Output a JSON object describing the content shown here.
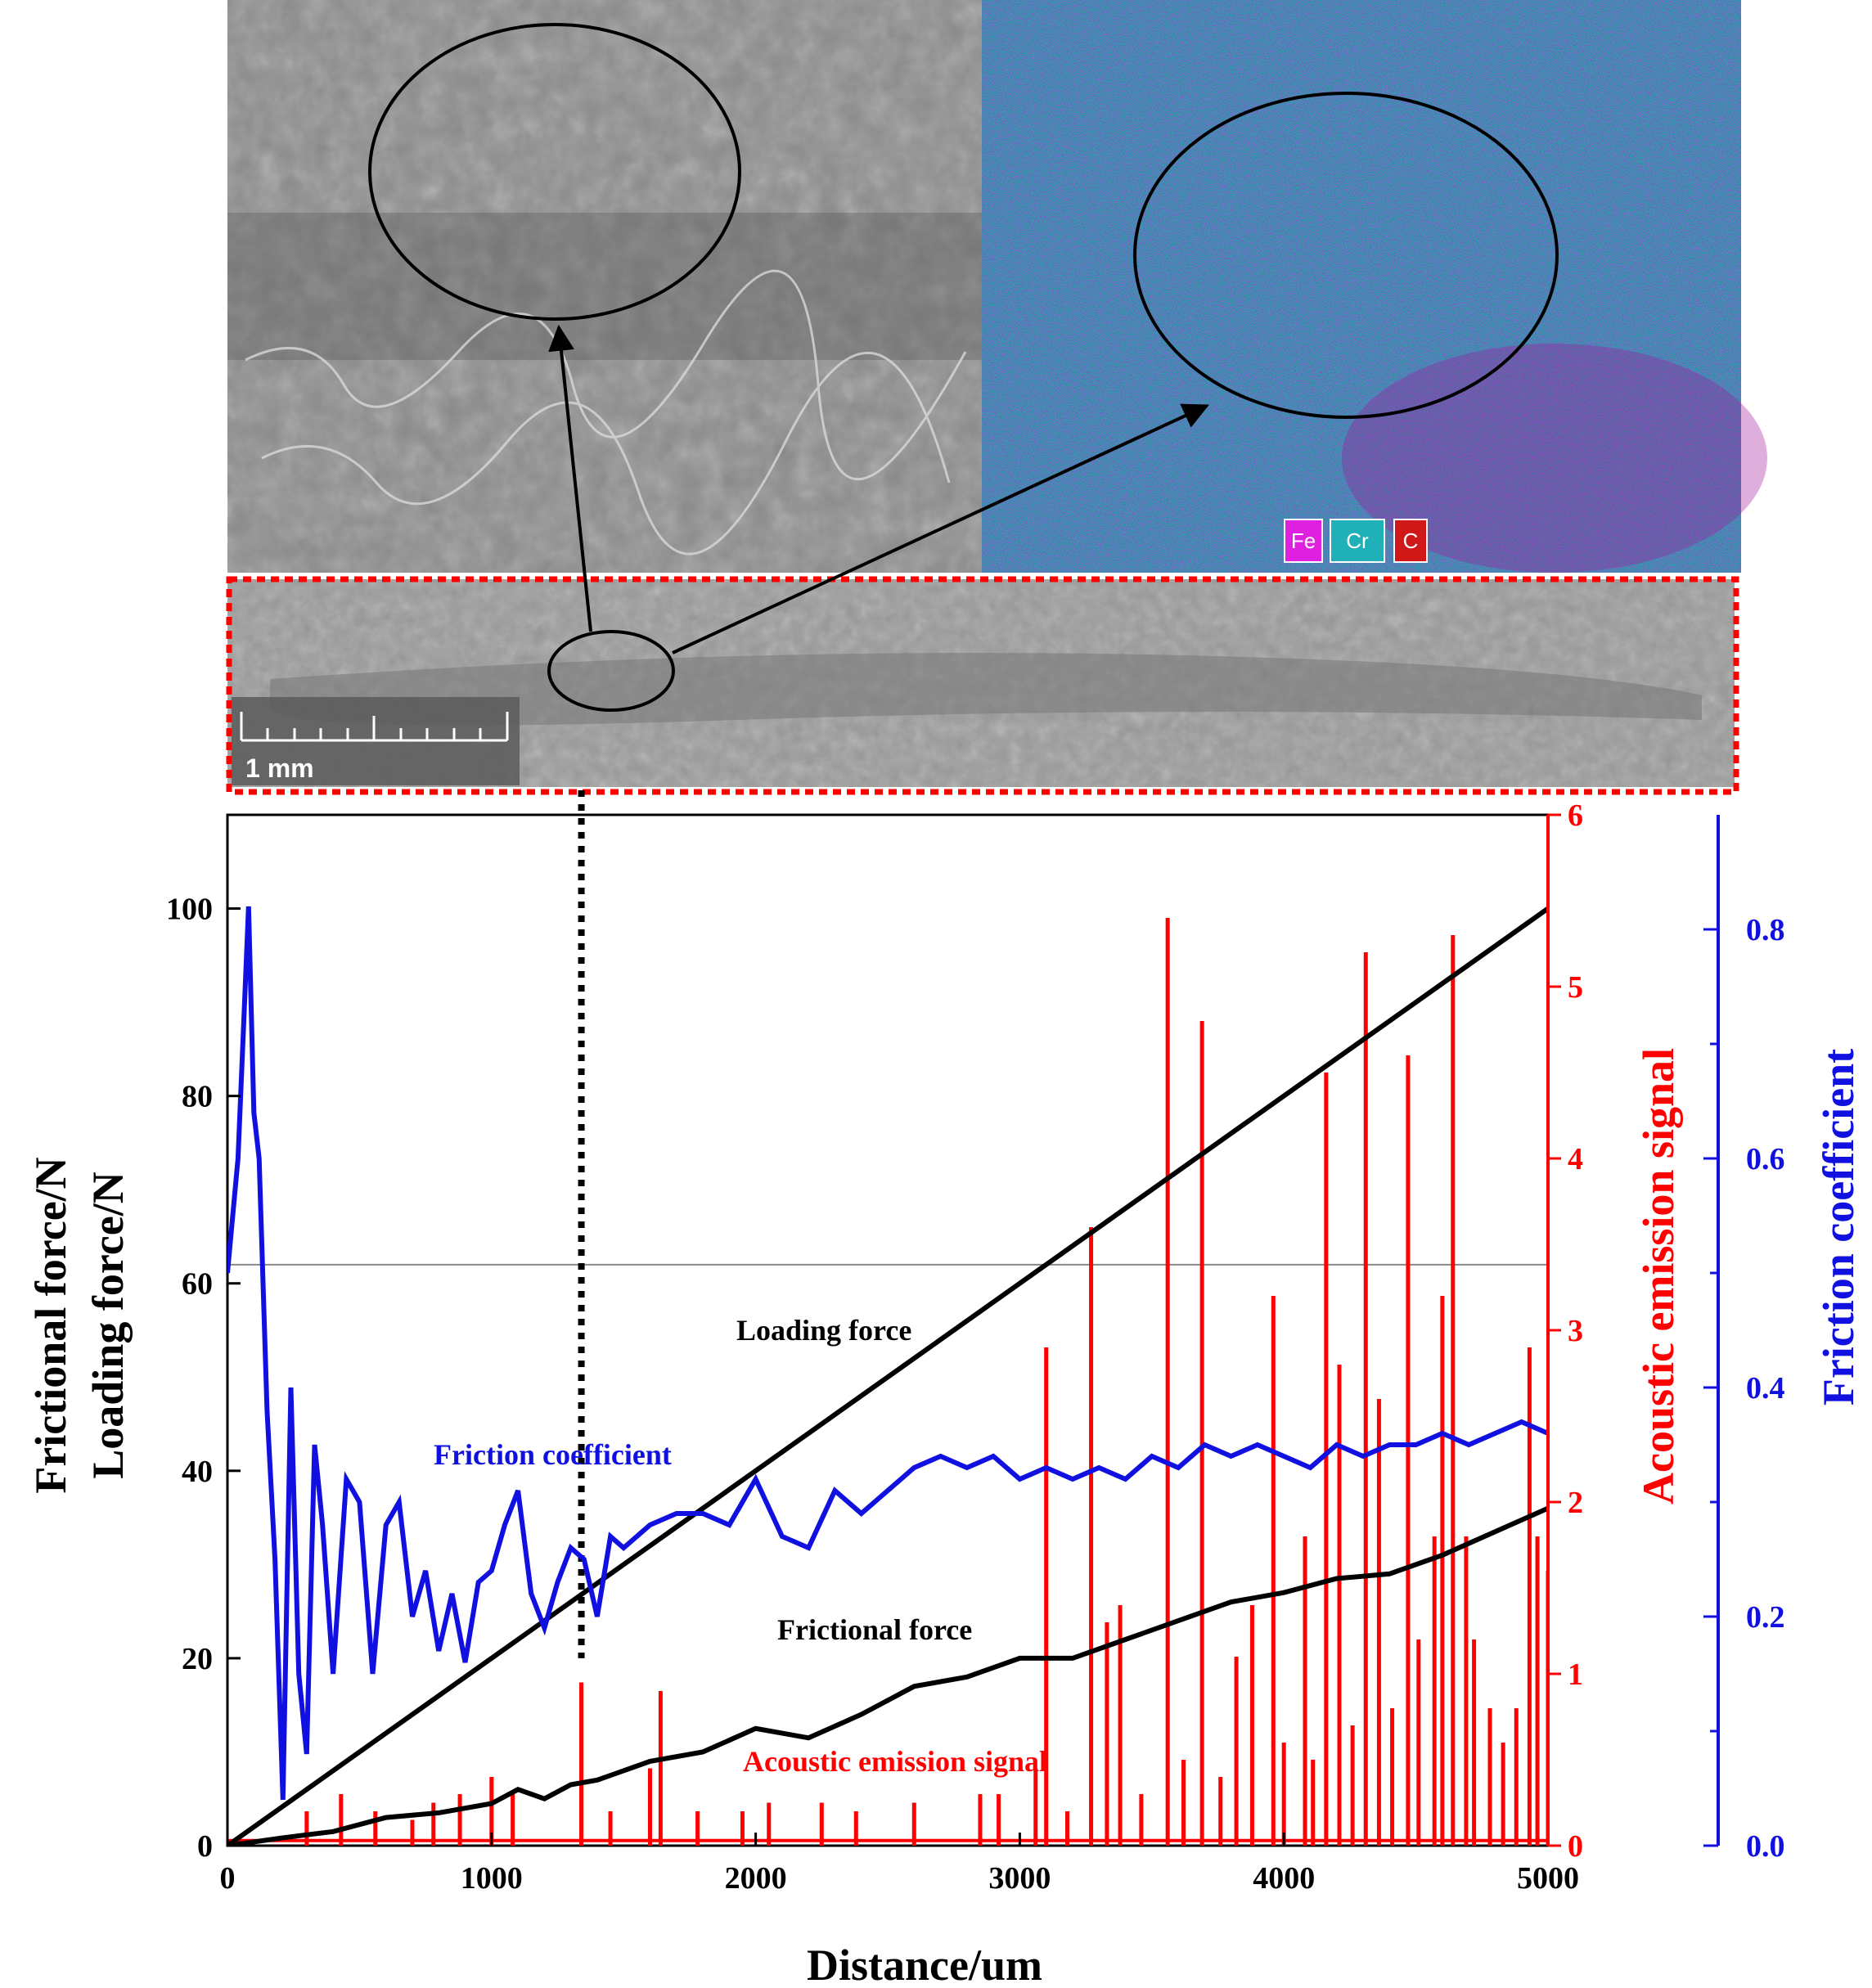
{
  "colors": {
    "load": "#000000",
    "friction_force": "#000000",
    "friction_coef": "#1010e0",
    "acoustic": "#ff0000",
    "sem_gray": "#8a8a8a",
    "eds_cyan": "#2aa6a8",
    "eds_magenta": "#a0169a",
    "highlight_box": "#ff0000"
  },
  "micrographs": {
    "legend": [
      {
        "label": "Fe",
        "color": "#e020e0"
      },
      {
        "label": "Cr",
        "color": "#20b0b8"
      },
      {
        "label": "C",
        "color": "#d01818"
      }
    ],
    "scale_bar_label": "1 mm"
  },
  "chart_data": {
    "type": "line",
    "xlabel": "Distance/um",
    "xlim": [
      0,
      5000
    ],
    "xticks": [
      0,
      1000,
      2000,
      3000,
      4000,
      5000
    ],
    "axes": {
      "left": {
        "label_line1": "Frictional force/N",
        "label_line2": "Loading force/N",
        "ylim": [
          0,
          110
        ],
        "ticks": [
          0,
          20,
          40,
          60,
          80,
          100
        ]
      },
      "right_red": {
        "label": "Acoustic emission signal",
        "ylim": [
          0,
          6
        ],
        "ticks": [
          0,
          1,
          2,
          3,
          4,
          5,
          6
        ]
      },
      "right_blue": {
        "label": "Friction coefficient",
        "ylim": [
          0,
          0.9
        ],
        "ticks": [
          "0.0",
          "0.2",
          "0.4",
          "0.6",
          "0.8"
        ]
      }
    },
    "reference_line_left_value": 62,
    "critical_distance": 1340,
    "annotations": {
      "loading_force": "Loading force",
      "friction_coefficient": "Friction coefficient",
      "frictional_force": "Frictional force",
      "acoustic_emission": "Acoustic emission signal"
    },
    "series": [
      {
        "name": "Loading force",
        "axis": "left",
        "x": [
          0,
          5000
        ],
        "y": [
          0,
          100
        ]
      },
      {
        "name": "Frictional force",
        "axis": "left",
        "x": [
          0,
          200,
          400,
          600,
          800,
          1000,
          1100,
          1200,
          1300,
          1400,
          1500,
          1600,
          1800,
          2000,
          2200,
          2400,
          2600,
          2800,
          3000,
          3200,
          3400,
          3600,
          3800,
          4000,
          4200,
          4400,
          4600,
          4800,
          5000
        ],
        "y": [
          0,
          0.8,
          1.5,
          3,
          3.5,
          4.5,
          6,
          5,
          6.5,
          7,
          8,
          9,
          10,
          12.5,
          11.5,
          14,
          17,
          18,
          20,
          20,
          22,
          24,
          26,
          27,
          28.5,
          29,
          31,
          33.5,
          36
        ]
      },
      {
        "name": "Friction coefficient",
        "axis": "right_blue",
        "x": [
          0,
          40,
          60,
          80,
          100,
          120,
          150,
          180,
          210,
          240,
          270,
          300,
          330,
          360,
          400,
          450,
          500,
          550,
          600,
          650,
          700,
          750,
          800,
          850,
          900,
          950,
          1000,
          1050,
          1100,
          1150,
          1200,
          1250,
          1300,
          1350,
          1400,
          1450,
          1500,
          1600,
          1700,
          1800,
          1900,
          2000,
          2100,
          2200,
          2300,
          2400,
          2500,
          2600,
          2700,
          2800,
          2900,
          3000,
          3100,
          3200,
          3300,
          3400,
          3500,
          3600,
          3700,
          3800,
          3900,
          4000,
          4100,
          4200,
          4300,
          4400,
          4500,
          4600,
          4700,
          4800,
          4900,
          5000
        ],
        "y": [
          0.5,
          0.6,
          0.71,
          0.82,
          0.64,
          0.6,
          0.38,
          0.25,
          0.04,
          0.4,
          0.15,
          0.08,
          0.35,
          0.28,
          0.15,
          0.32,
          0.3,
          0.15,
          0.28,
          0.3,
          0.2,
          0.24,
          0.17,
          0.22,
          0.16,
          0.23,
          0.24,
          0.28,
          0.31,
          0.22,
          0.19,
          0.23,
          0.26,
          0.25,
          0.2,
          0.27,
          0.26,
          0.28,
          0.29,
          0.29,
          0.28,
          0.32,
          0.27,
          0.26,
          0.31,
          0.29,
          0.31,
          0.33,
          0.34,
          0.33,
          0.34,
          0.32,
          0.33,
          0.32,
          0.33,
          0.32,
          0.34,
          0.33,
          0.35,
          0.34,
          0.35,
          0.34,
          0.33,
          0.35,
          0.34,
          0.35,
          0.35,
          0.36,
          0.35,
          0.36,
          0.37,
          0.36
        ]
      },
      {
        "name": "Acoustic emission signal",
        "axis": "right_red",
        "style": "spikes",
        "x": [
          300,
          430,
          560,
          700,
          780,
          880,
          1000,
          1080,
          1340,
          1450,
          1600,
          1640,
          1780,
          1950,
          2050,
          2250,
          2380,
          2600,
          2850,
          2920,
          3060,
          3100,
          3180,
          3270,
          3330,
          3380,
          3460,
          3560,
          3620,
          3690,
          3760,
          3820,
          3880,
          3960,
          4000,
          4080,
          4110,
          4160,
          4210,
          4260,
          4310,
          4360,
          4410,
          4470,
          4510,
          4570,
          4600,
          4640,
          4690,
          4720,
          4780,
          4830,
          4880,
          4930,
          4960,
          5000
        ],
        "y": [
          0.2,
          0.3,
          0.2,
          0.15,
          0.25,
          0.3,
          0.4,
          0.3,
          0.95,
          0.2,
          0.45,
          0.9,
          0.2,
          0.2,
          0.25,
          0.25,
          0.2,
          0.25,
          0.3,
          0.3,
          0.45,
          2.9,
          0.2,
          3.6,
          1.3,
          1.4,
          0.3,
          5.4,
          0.5,
          4.8,
          0.4,
          1.1,
          1.4,
          3.2,
          0.6,
          1.8,
          0.5,
          4.5,
          2.8,
          0.7,
          5.2,
          2.6,
          0.8,
          4.6,
          1.2,
          1.8,
          3.2,
          5.3,
          1.8,
          1.2,
          0.8,
          0.6,
          0.8,
          2.9,
          1.8,
          1.6
        ]
      }
    ]
  }
}
